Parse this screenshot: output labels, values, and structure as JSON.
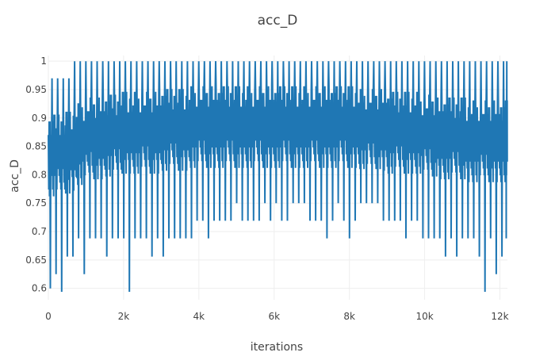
{
  "chart_data": {
    "type": "line",
    "title": "acc_D",
    "xlabel": "iterations",
    "ylabel": "acc_D",
    "xlim": [
      0,
      12200
    ],
    "ylim": [
      0.58,
      1.01
    ],
    "x_ticks": [
      {
        "value": 0,
        "label": "0"
      },
      {
        "value": 2000,
        "label": "2k"
      },
      {
        "value": 4000,
        "label": "4k"
      },
      {
        "value": 6000,
        "label": "6k"
      },
      {
        "value": 8000,
        "label": "8k"
      },
      {
        "value": 10000,
        "label": "10k"
      },
      {
        "value": 12000,
        "label": "12k"
      }
    ],
    "y_ticks": [
      {
        "value": 0.6,
        "label": "0.6"
      },
      {
        "value": 0.65,
        "label": "0.65"
      },
      {
        "value": 0.7,
        "label": "0.7"
      },
      {
        "value": 0.75,
        "label": "0.75"
      },
      {
        "value": 0.8,
        "label": "0.8"
      },
      {
        "value": 0.85,
        "label": "0.85"
      },
      {
        "value": 0.9,
        "label": "0.9"
      },
      {
        "value": 0.95,
        "label": "0.95"
      },
      {
        "value": 1,
        "label": "1"
      }
    ],
    "grid": true,
    "legend": "none",
    "series": [
      {
        "color": "#1f77b4",
        "x": [
          0,
          150,
          300,
          450,
          600,
          750,
          900,
          1050,
          1200,
          1350,
          1500,
          1650,
          1800,
          1950,
          2100,
          2250,
          2400,
          2550,
          2700,
          2850,
          3000,
          3150,
          3300,
          3450,
          3600,
          3750,
          3900,
          4050,
          4200,
          4350,
          4500,
          4650,
          4800,
          4950,
          5100,
          5250,
          5400,
          5550,
          5700,
          5850,
          6000,
          6150,
          6300,
          6450,
          6600,
          6750,
          6900,
          7050,
          7200,
          7350,
          7500,
          7650,
          7800,
          7950,
          8100,
          8250,
          8400,
          8550,
          8700,
          8850,
          9000,
          9150,
          9300,
          9450,
          9600,
          9750,
          9900,
          10050,
          10200,
          10350,
          10500,
          10650,
          10800,
          10950,
          11100,
          11250,
          11400,
          11550,
          11700,
          11850,
          12000,
          12150
        ],
        "y_mean": [
          0.84,
          0.84,
          0.84,
          0.845,
          0.85,
          0.86,
          0.865,
          0.87,
          0.87,
          0.87,
          0.875,
          0.875,
          0.875,
          0.88,
          0.88,
          0.88,
          0.88,
          0.88,
          0.88,
          0.88,
          0.885,
          0.885,
          0.885,
          0.885,
          0.885,
          0.89,
          0.89,
          0.89,
          0.89,
          0.89,
          0.89,
          0.89,
          0.89,
          0.89,
          0.89,
          0.89,
          0.89,
          0.89,
          0.89,
          0.89,
          0.89,
          0.89,
          0.89,
          0.89,
          0.89,
          0.89,
          0.89,
          0.89,
          0.89,
          0.89,
          0.89,
          0.89,
          0.89,
          0.89,
          0.89,
          0.885,
          0.885,
          0.885,
          0.885,
          0.885,
          0.88,
          0.88,
          0.88,
          0.88,
          0.88,
          0.88,
          0.875,
          0.875,
          0.875,
          0.87,
          0.87,
          0.87,
          0.87,
          0.87,
          0.865,
          0.865,
          0.865,
          0.865,
          0.865,
          0.865,
          0.865,
          0.865
        ],
        "y_max": [
          0.97,
          0.97,
          0.97,
          0.97,
          1,
          1,
          1,
          1,
          1,
          1,
          1,
          1,
          1,
          1,
          1,
          1,
          1,
          1,
          1,
          1,
          1,
          1,
          1,
          1,
          1,
          1,
          1,
          1,
          1,
          1,
          1,
          1,
          1,
          1,
          1,
          1,
          1,
          1,
          1,
          1,
          1,
          1,
          1,
          1,
          1,
          1,
          1,
          1,
          1,
          1,
          1,
          1,
          1,
          1,
          1,
          1,
          1,
          1,
          1,
          1,
          1,
          1,
          1,
          1,
          1,
          1,
          1,
          1,
          1,
          1,
          1,
          1,
          1,
          1,
          1,
          1,
          1,
          1,
          1,
          1,
          1,
          1
        ],
        "y_min": [
          0.6,
          0.625,
          0.594,
          0.656,
          0.656,
          0.688,
          0.625,
          0.688,
          0.688,
          0.688,
          0.656,
          0.688,
          0.688,
          0.688,
          0.594,
          0.688,
          0.688,
          0.688,
          0.656,
          0.688,
          0.656,
          0.688,
          0.688,
          0.688,
          0.688,
          0.688,
          0.719,
          0.719,
          0.688,
          0.719,
          0.719,
          0.719,
          0.719,
          0.75,
          0.719,
          0.719,
          0.719,
          0.719,
          0.75,
          0.719,
          0.75,
          0.719,
          0.719,
          0.75,
          0.75,
          0.75,
          0.719,
          0.719,
          0.719,
          0.688,
          0.719,
          0.75,
          0.719,
          0.688,
          0.719,
          0.75,
          0.75,
          0.75,
          0.75,
          0.719,
          0.719,
          0.719,
          0.719,
          0.688,
          0.719,
          0.719,
          0.688,
          0.688,
          0.688,
          0.688,
          0.656,
          0.688,
          0.656,
          0.688,
          0.688,
          0.688,
          0.656,
          0.594,
          0.688,
          0.625,
          0.656,
          0.688
        ]
      }
    ]
  }
}
